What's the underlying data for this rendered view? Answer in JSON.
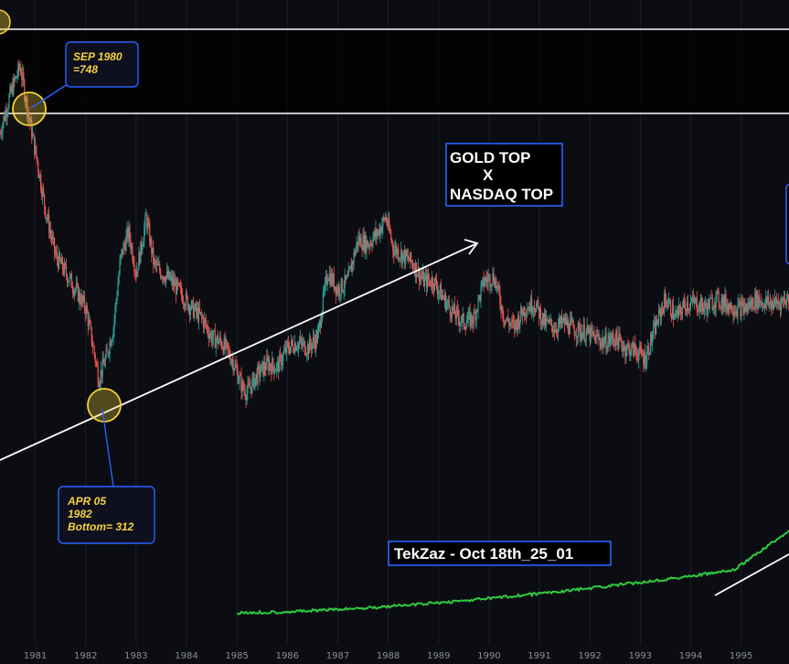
{
  "chart_data": {
    "type": "candlestick",
    "x_ticks": [
      "1981",
      "1982",
      "1983",
      "1984",
      "1985",
      "1986",
      "1987",
      "1988",
      "1989",
      "1990",
      "1991",
      "1992",
      "1993",
      "1994",
      "1995"
    ],
    "x_range": [
      1980.3,
      1995.95
    ],
    "y_range": [
      150,
      900
    ],
    "y_scale": "log",
    "gold_series": [
      [
        1980.3,
        620
      ],
      [
        1980.5,
        690
      ],
      [
        1980.7,
        748
      ],
      [
        1980.85,
        660
      ],
      [
        1981.0,
        590
      ],
      [
        1981.2,
        500
      ],
      [
        1981.4,
        440
      ],
      [
        1981.6,
        420
      ],
      [
        1981.8,
        400
      ],
      [
        1982.0,
        380
      ],
      [
        1982.15,
        340
      ],
      [
        1982.26,
        312
      ],
      [
        1982.4,
        330
      ],
      [
        1982.55,
        360
      ],
      [
        1982.7,
        440
      ],
      [
        1982.85,
        470
      ],
      [
        1983.0,
        420
      ],
      [
        1983.1,
        450
      ],
      [
        1983.2,
        490
      ],
      [
        1983.35,
        430
      ],
      [
        1983.5,
        420
      ],
      [
        1983.7,
        410
      ],
      [
        1983.9,
        395
      ],
      [
        1984.1,
        380
      ],
      [
        1984.3,
        370
      ],
      [
        1984.5,
        350
      ],
      [
        1984.7,
        345
      ],
      [
        1984.9,
        330
      ],
      [
        1985.1,
        305
      ],
      [
        1985.2,
        300
      ],
      [
        1985.4,
        315
      ],
      [
        1985.6,
        325
      ],
      [
        1985.8,
        322
      ],
      [
        1986.0,
        340
      ],
      [
        1986.2,
        345
      ],
      [
        1986.4,
        340
      ],
      [
        1986.6,
        350
      ],
      [
        1986.8,
        420
      ],
      [
        1987.0,
        400
      ],
      [
        1987.2,
        410
      ],
      [
        1987.4,
        460
      ],
      [
        1987.6,
        455
      ],
      [
        1987.8,
        470
      ],
      [
        1987.95,
        490
      ],
      [
        1988.1,
        450
      ],
      [
        1988.3,
        440
      ],
      [
        1988.5,
        430
      ],
      [
        1988.7,
        410
      ],
      [
        1988.9,
        410
      ],
      [
        1989.1,
        390
      ],
      [
        1989.3,
        375
      ],
      [
        1989.5,
        365
      ],
      [
        1989.7,
        370
      ],
      [
        1989.9,
        410
      ],
      [
        1990.1,
        415
      ],
      [
        1990.3,
        370
      ],
      [
        1990.5,
        360
      ],
      [
        1990.7,
        380
      ],
      [
        1990.9,
        385
      ],
      [
        1991.1,
        365
      ],
      [
        1991.3,
        360
      ],
      [
        1991.5,
        365
      ],
      [
        1991.7,
        358
      ],
      [
        1991.9,
        355
      ],
      [
        1992.1,
        350
      ],
      [
        1992.3,
        345
      ],
      [
        1992.5,
        350
      ],
      [
        1992.7,
        340
      ],
      [
        1992.9,
        338
      ],
      [
        1993.1,
        330
      ],
      [
        1993.3,
        360
      ],
      [
        1993.5,
        390
      ],
      [
        1993.7,
        370
      ],
      [
        1993.9,
        385
      ],
      [
        1994.1,
        385
      ],
      [
        1994.3,
        380
      ],
      [
        1994.5,
        390
      ],
      [
        1994.7,
        385
      ],
      [
        1994.9,
        380
      ],
      [
        1995.1,
        380
      ],
      [
        1995.3,
        390
      ],
      [
        1995.5,
        385
      ],
      [
        1995.7,
        385
      ],
      [
        1995.9,
        390
      ]
    ],
    "annotations": {
      "top_callout": [
        "SEP 1980",
        "=748"
      ],
      "bottom_callout": [
        "APR 05",
        "1982",
        "Bottom= 312"
      ],
      "box_main": [
        "GOLD TOP",
        "X",
        "NASDAQ TOP"
      ],
      "box_credit": "TekZaz - Oct 18th_25_01"
    },
    "colors": {
      "up": "#26a69a",
      "down": "#ef5350",
      "nasdaq_line": "#2ecc40",
      "callout_text": "#f5d33a",
      "callout_border": "#2962ff",
      "circle": "#f5d33a",
      "grid": "#1c1f28"
    }
  }
}
